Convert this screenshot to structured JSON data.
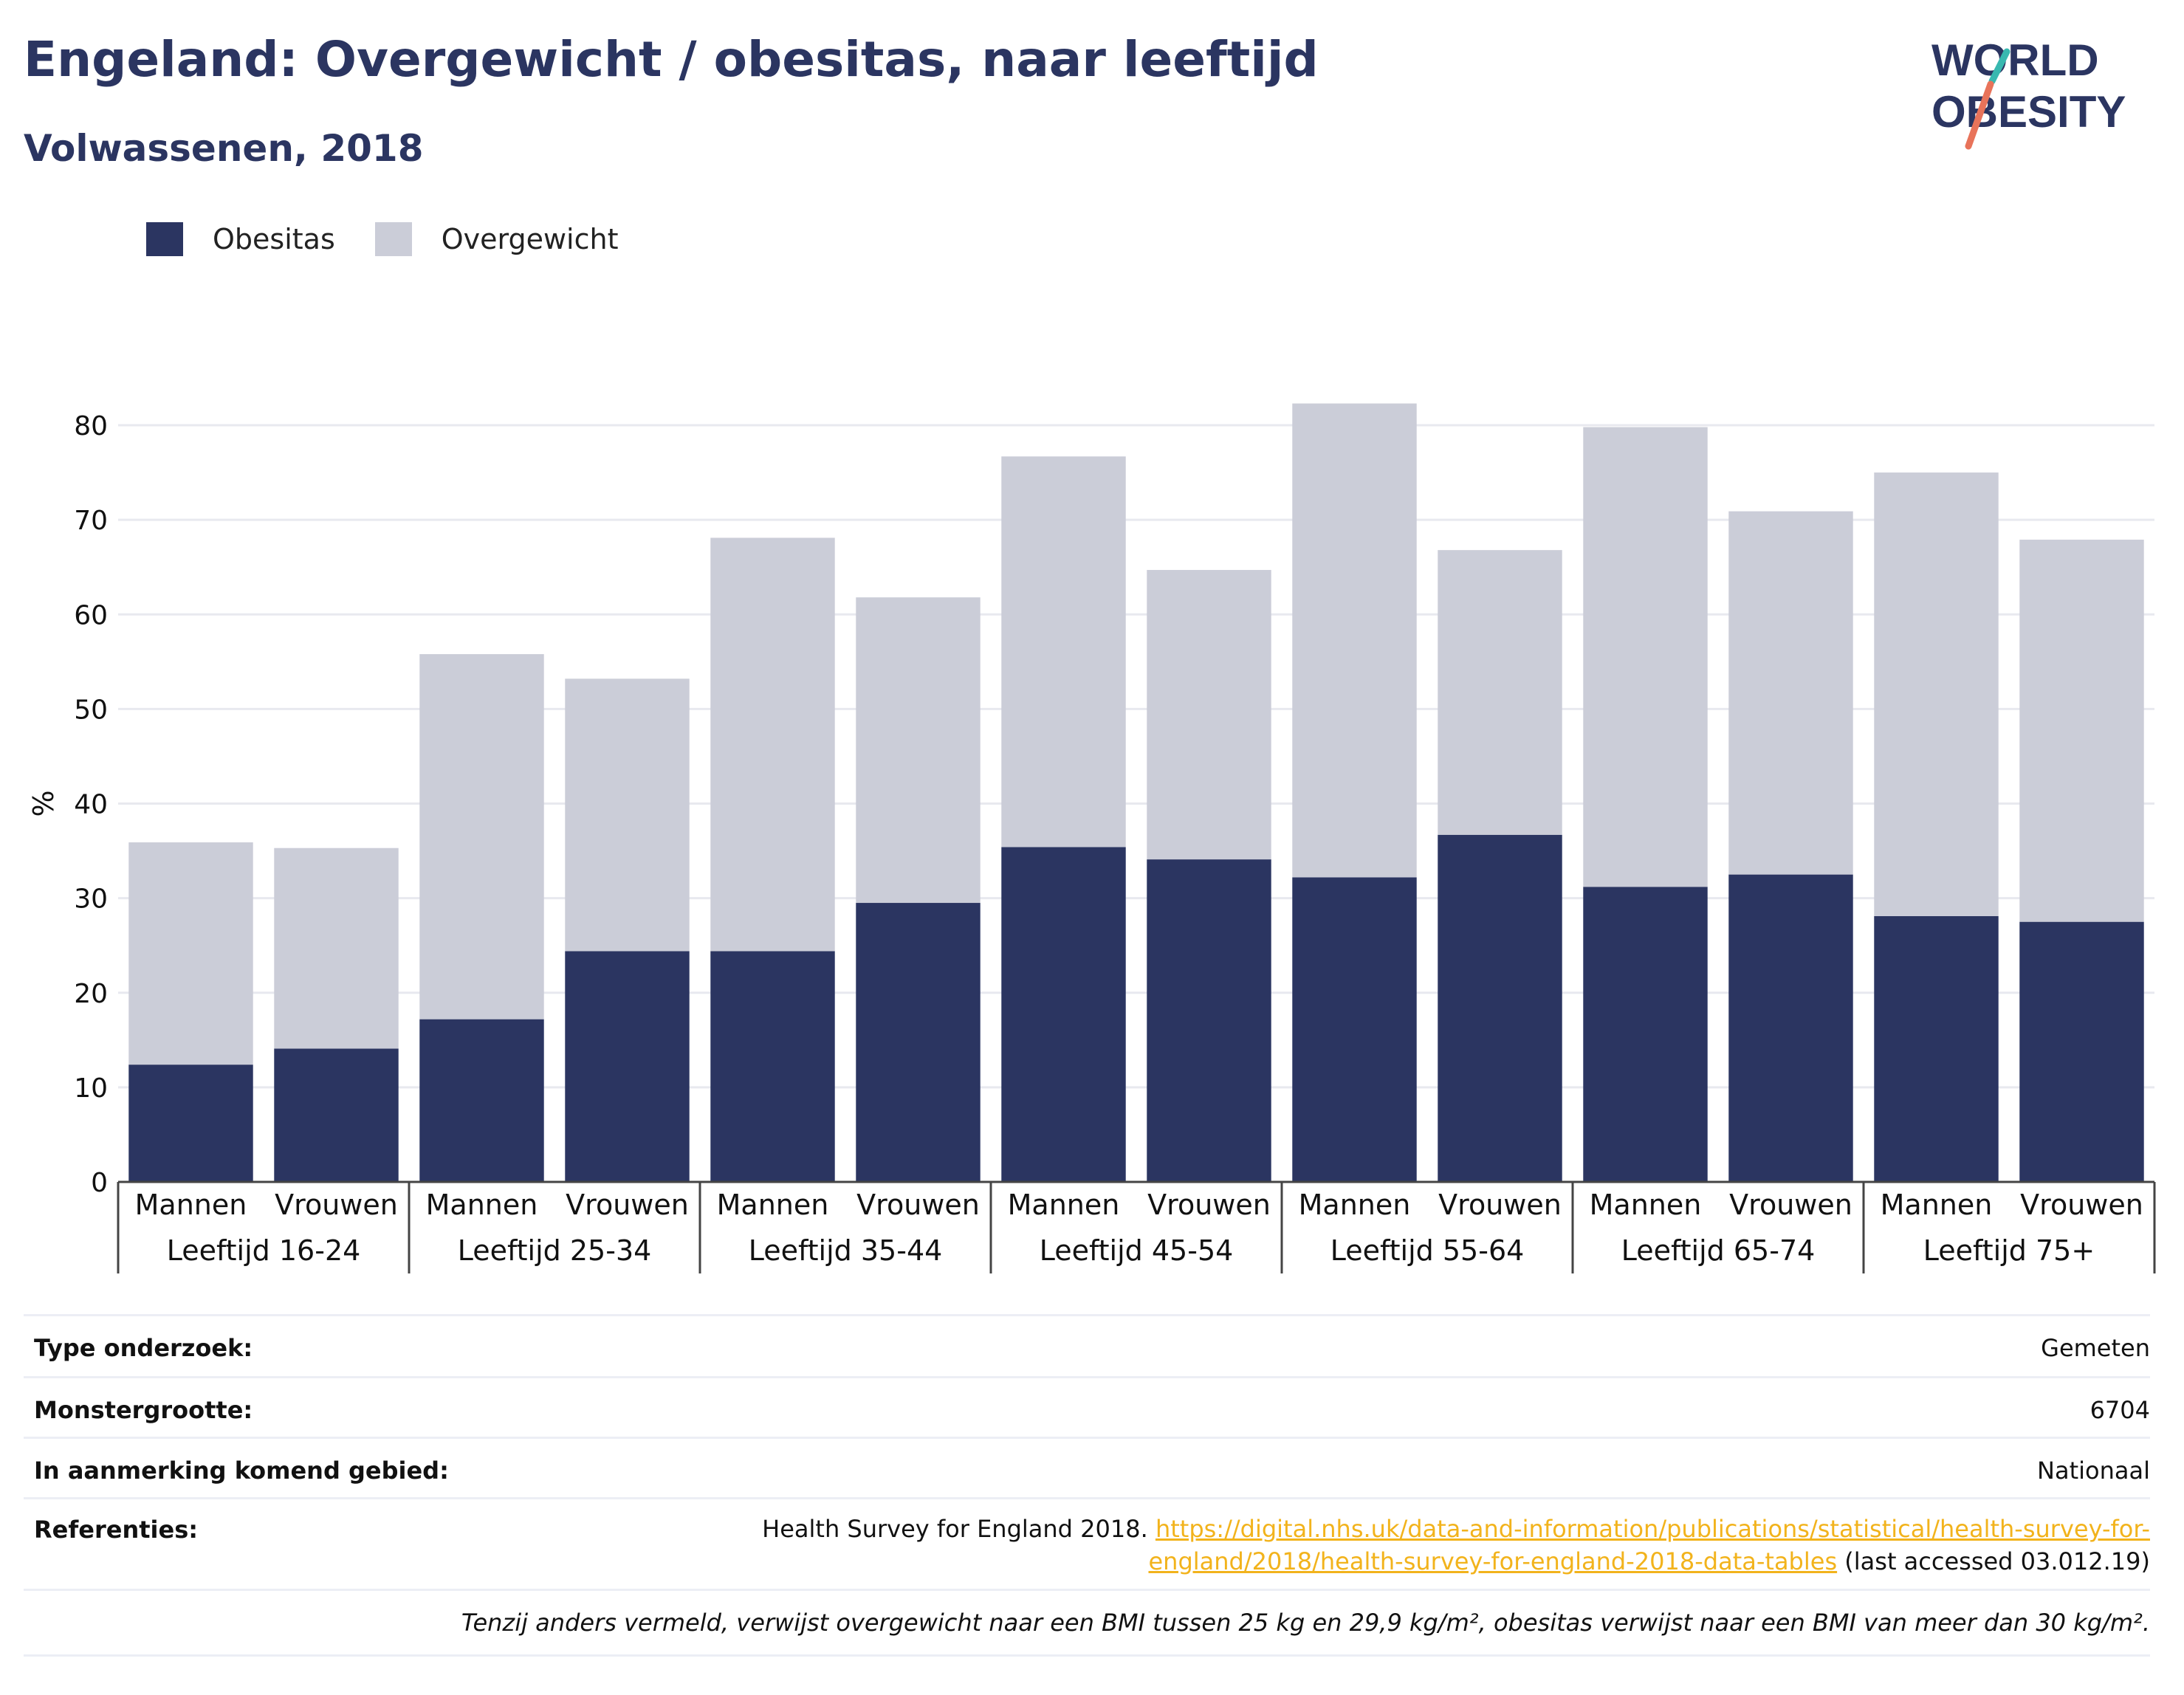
{
  "title": "Engeland: Overgewicht / obesitas, naar leeftijd",
  "subtitle": "Volwassenen, 2018",
  "logo": {
    "line1": "WORLD",
    "line2": "OBESITY"
  },
  "colors": {
    "obesitas": "#2b3561",
    "overgewicht": "#cbcdd8",
    "title": "#2b3561",
    "link": "#f2b31c",
    "logo_teal": "#38b8b0",
    "logo_coral": "#e8735a"
  },
  "legend": [
    {
      "label": "Obesitas",
      "color": "#2b3561"
    },
    {
      "label": "Overgewicht",
      "color": "#cbcdd8"
    }
  ],
  "chart_data": {
    "type": "bar",
    "stacked": true,
    "ylabel": "%",
    "ylim": [
      0,
      80
    ],
    "yticks": [
      0,
      10,
      20,
      30,
      40,
      50,
      60,
      70,
      80
    ],
    "grid": true,
    "legend_position": "top-left",
    "groups": [
      "Leeftijd 16-24",
      "Leeftijd 25-34",
      "Leeftijd 35-44",
      "Leeftijd 45-54",
      "Leeftijd 55-64",
      "Leeftijd 65-74",
      "Leeftijd 75+"
    ],
    "categories": [
      "Mannen",
      "Vrouwen",
      "Mannen",
      "Vrouwen",
      "Mannen",
      "Vrouwen",
      "Mannen",
      "Vrouwen",
      "Mannen",
      "Vrouwen",
      "Mannen",
      "Vrouwen",
      "Mannen",
      "Vrouwen"
    ],
    "series": [
      {
        "name": "Obesitas",
        "values": [
          12.4,
          14.1,
          17.2,
          24.4,
          24.4,
          29.5,
          35.4,
          34.1,
          32.2,
          36.7,
          31.2,
          32.5,
          28.1,
          27.5
        ]
      },
      {
        "name": "Overgewicht",
        "values": [
          23.5,
          21.2,
          38.6,
          28.8,
          43.7,
          32.3,
          41.3,
          30.6,
          50.1,
          30.1,
          48.6,
          38.4,
          46.9,
          40.4
        ]
      }
    ]
  },
  "meta": {
    "survey_type": {
      "label": "Type onderzoek:",
      "value": "Gemeten"
    },
    "sample_size": {
      "label": "Monstergrootte:",
      "value": "6704"
    },
    "area": {
      "label": "In aanmerking komend gebied:",
      "value": "Nationaal"
    },
    "references": {
      "label": "Referenties:",
      "text": "Health Survey for England 2018. ",
      "link": "https://digital.nhs.uk/data-and-information/publications/statistical/health-survey-for-england/2018/health-survey-for-england-2018-data-tables",
      "suffix": " (last accessed 03.012.19)"
    },
    "note": "Tenzij anders vermeld, verwijst overgewicht naar een BMI tussen 25 kg en 29,9 kg/m², obesitas verwijst naar een BMI van meer dan 30 kg/m²."
  }
}
